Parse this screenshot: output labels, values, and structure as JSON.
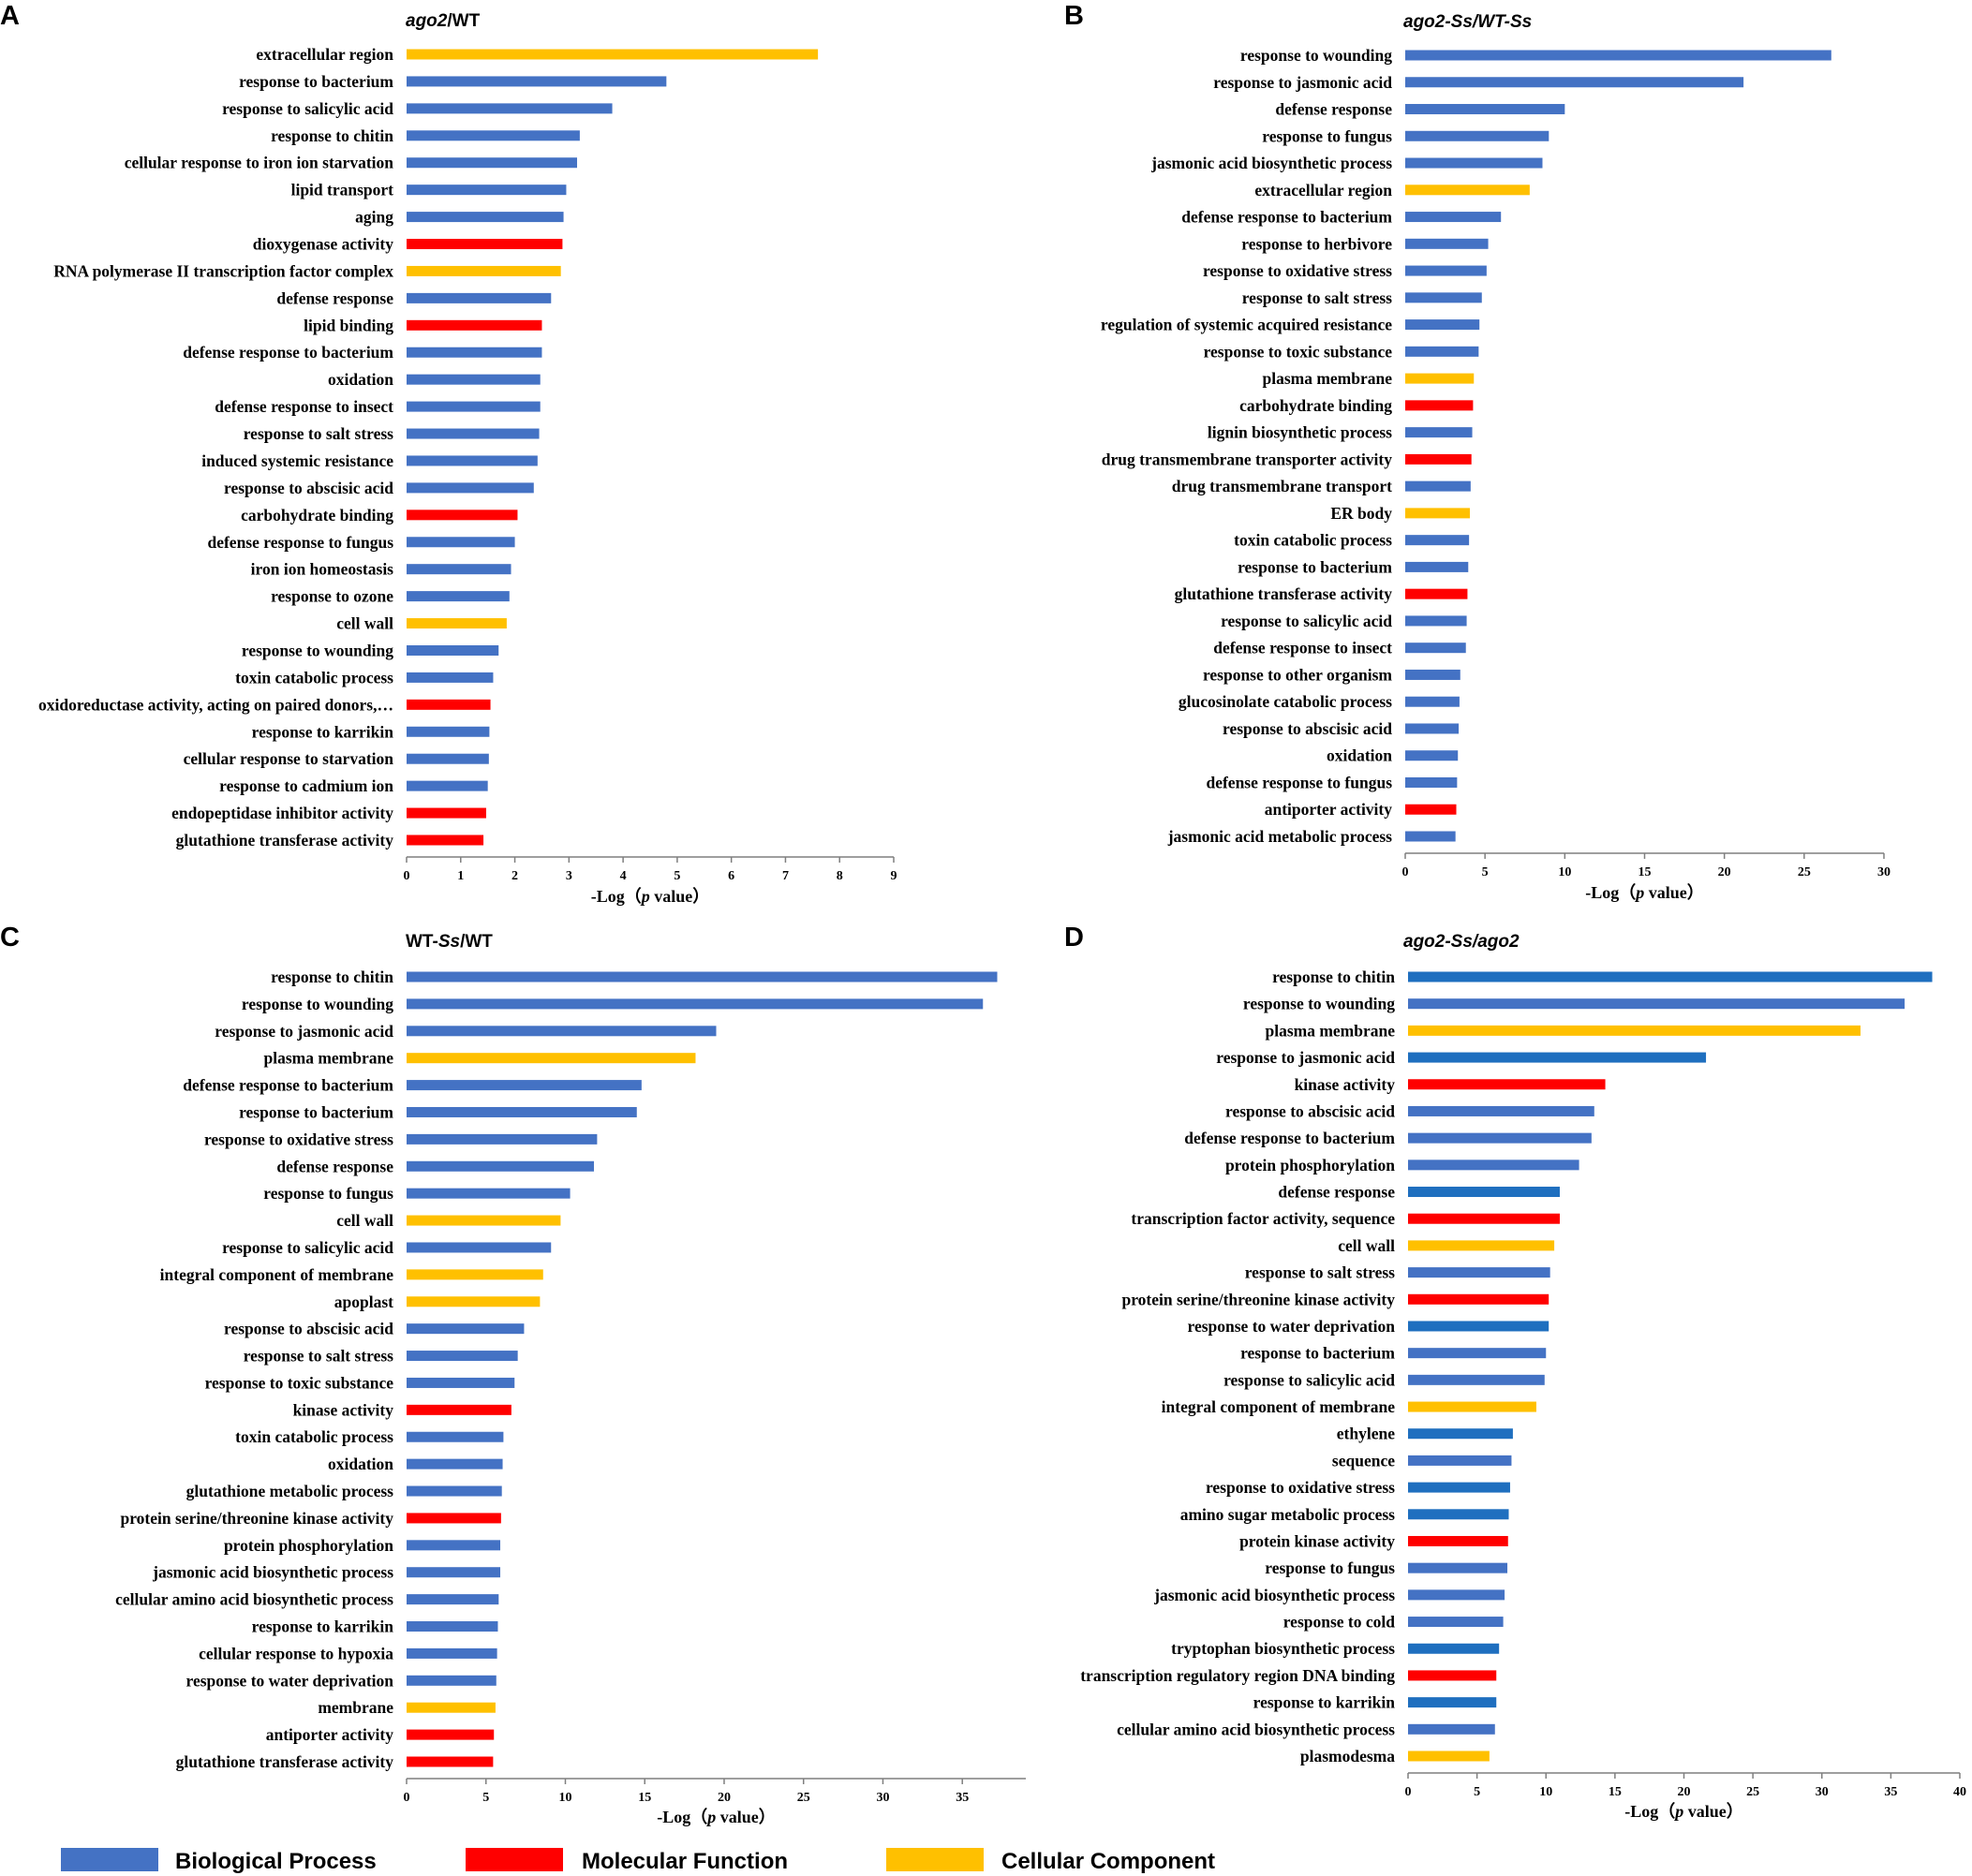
{
  "colors": {
    "bp": "#4472C4",
    "bp_dark": "#1F6FBF",
    "mf": "#FF0000",
    "cc": "#FFC000"
  },
  "legend": {
    "items": [
      {
        "key": "bp",
        "label": "Biological Process"
      },
      {
        "key": "mf",
        "label": "Molecular Function"
      },
      {
        "key": "cc",
        "label": "Cellular Component"
      }
    ]
  },
  "chart_data": [
    {
      "type": "bar",
      "orientation": "horizontal",
      "panel": "A",
      "title": "ago2/WT",
      "title_parts": [
        {
          "text": "ago2",
          "italic": true
        },
        {
          "text": "/WT",
          "italic": false
        }
      ],
      "xlabel": "-Log（p value）",
      "xlabel_parts": [
        {
          "text": "-Log（",
          "italic": false
        },
        {
          "text": "p",
          "italic": true
        },
        {
          "text": " value）",
          "italic": false
        }
      ],
      "xlim": [
        0,
        9
      ],
      "xticks": [
        0,
        1,
        2,
        3,
        4,
        5,
        6,
        7,
        8,
        9
      ],
      "categories": [
        "extracellular region",
        "response to bacterium",
        "response to salicylic acid",
        "response to chitin",
        "cellular response to iron ion starvation",
        "lipid transport",
        "aging",
        "dioxygenase activity",
        "RNA polymerase II transcription factor complex",
        "defense response",
        "lipid binding",
        "defense response to bacterium",
        "oxidation",
        "defense response to insect",
        "response to salt stress",
        "induced systemic resistance",
        "response to abscisic acid",
        "carbohydrate binding",
        "defense response to fungus",
        "iron ion homeostasis",
        "response to ozone",
        "cell wall",
        "response to wounding",
        "toxin catabolic process",
        "oxidoreductase activity, acting on paired donors,…",
        "response to karrikin",
        "cellular response to starvation",
        "response to cadmium ion",
        "endopeptidase inhibitor activity",
        "glutathione transferase activity"
      ],
      "values": [
        7.6,
        4.8,
        3.8,
        3.2,
        3.15,
        2.95,
        2.9,
        2.88,
        2.85,
        2.67,
        2.5,
        2.5,
        2.47,
        2.47,
        2.45,
        2.42,
        2.35,
        2.05,
        2.0,
        1.93,
        1.9,
        1.85,
        1.7,
        1.6,
        1.55,
        1.53,
        1.52,
        1.5,
        1.47,
        1.42
      ],
      "groups": [
        "cc",
        "bp",
        "bp",
        "bp",
        "bp",
        "bp",
        "bp",
        "mf",
        "cc",
        "bp",
        "mf",
        "bp",
        "bp",
        "bp",
        "bp",
        "bp",
        "bp",
        "mf",
        "bp",
        "bp",
        "bp",
        "cc",
        "bp",
        "bp",
        "mf",
        "bp",
        "bp",
        "bp",
        "mf",
        "mf"
      ]
    },
    {
      "type": "bar",
      "orientation": "horizontal",
      "panel": "B",
      "title": "ago2-Ss/WT-Ss",
      "title_parts": [
        {
          "text": "ago2-Ss/WT-Ss",
          "italic": true
        }
      ],
      "xlabel": "-Log（p value）",
      "xlabel_parts": [
        {
          "text": "-Log（",
          "italic": false
        },
        {
          "text": "p",
          "italic": true
        },
        {
          "text": " value）",
          "italic": false
        }
      ],
      "xlim": [
        0,
        30
      ],
      "xticks": [
        0,
        5,
        10,
        15,
        20,
        25,
        30
      ],
      "categories": [
        "response to wounding",
        "response to jasmonic acid",
        "defense response",
        "response to fungus",
        "jasmonic acid biosynthetic process",
        "extracellular region",
        "defense response to bacterium",
        "response to herbivore",
        "response to oxidative stress",
        "response to salt stress",
        "regulation of systemic acquired resistance",
        "response to toxic substance",
        "plasma membrane",
        "carbohydrate binding",
        "lignin biosynthetic process",
        "drug transmembrane transporter activity",
        "drug transmembrane transport",
        "ER body",
        "toxin catabolic process",
        "response to bacterium",
        "glutathione transferase activity",
        "response to salicylic acid",
        "defense response to insect",
        "response to other organism",
        "glucosinolate catabolic process",
        "response to abscisic acid",
        "oxidation",
        "defense response to fungus",
        "antiporter activity",
        "jasmonic acid metabolic process"
      ],
      "values": [
        26.7,
        21.2,
        10.0,
        9.0,
        8.6,
        7.8,
        6.0,
        5.2,
        5.1,
        4.8,
        4.65,
        4.6,
        4.3,
        4.25,
        4.2,
        4.15,
        4.1,
        4.05,
        4.0,
        3.95,
        3.9,
        3.85,
        3.8,
        3.45,
        3.4,
        3.35,
        3.3,
        3.25,
        3.2,
        3.15
      ],
      "groups": [
        "bp",
        "bp",
        "bp",
        "bp",
        "bp",
        "cc",
        "bp",
        "bp",
        "bp",
        "bp",
        "bp",
        "bp",
        "cc",
        "mf",
        "bp",
        "mf",
        "bp",
        "cc",
        "bp",
        "bp",
        "mf",
        "bp",
        "bp",
        "bp",
        "bp",
        "bp",
        "bp",
        "bp",
        "mf",
        "bp"
      ]
    },
    {
      "type": "bar",
      "orientation": "horizontal",
      "panel": "C",
      "title": "WT-Ss/WT",
      "title_parts": [
        {
          "text": "WT-",
          "italic": false
        },
        {
          "text": "Ss",
          "italic": true
        },
        {
          "text": "/WT",
          "italic": false
        }
      ],
      "xlabel": "-Log（p value）",
      "xlabel_parts": [
        {
          "text": "-Log（",
          "italic": false
        },
        {
          "text": "p",
          "italic": true
        },
        {
          "text": " value）",
          "italic": false
        }
      ],
      "xlim": [
        0,
        39
      ],
      "xticks": [
        0,
        5,
        10,
        15,
        20,
        25,
        30,
        35
      ],
      "categories": [
        "response to chitin",
        "response to wounding",
        "response to jasmonic acid",
        "plasma membrane",
        "defense response to bacterium",
        "response to bacterium",
        "response to oxidative stress",
        "defense response",
        "response to fungus",
        "cell wall",
        "response to salicylic acid",
        "integral component of membrane",
        "apoplast",
        "response to abscisic acid",
        "response to salt stress",
        "response to toxic substance",
        "kinase activity",
        "toxin catabolic process",
        "oxidation",
        "glutathione metabolic process",
        "protein serine/threonine kinase activity",
        "protein phosphorylation",
        "jasmonic acid biosynthetic process",
        "cellular amino acid biosynthetic process",
        "response to karrikin",
        "cellular response to hypoxia",
        "response to water deprivation",
        "membrane",
        "antiporter activity",
        "glutathione transferase activity"
      ],
      "values": [
        37.2,
        36.3,
        19.5,
        18.2,
        14.8,
        14.5,
        12.0,
        11.8,
        10.3,
        9.7,
        9.1,
        8.6,
        8.4,
        7.4,
        7.0,
        6.8,
        6.6,
        6.1,
        6.05,
        6.0,
        5.95,
        5.9,
        5.9,
        5.8,
        5.75,
        5.7,
        5.65,
        5.6,
        5.5,
        5.45
      ],
      "groups": [
        "bp",
        "bp",
        "bp",
        "cc",
        "bp",
        "bp",
        "bp",
        "bp",
        "bp",
        "cc",
        "bp",
        "cc",
        "cc",
        "bp",
        "bp",
        "bp",
        "mf",
        "bp",
        "bp",
        "bp",
        "mf",
        "bp",
        "bp",
        "bp",
        "bp",
        "bp",
        "bp",
        "cc",
        "mf",
        "mf"
      ]
    },
    {
      "type": "bar",
      "orientation": "horizontal",
      "panel": "D",
      "title": "ago2-Ss/ago2",
      "title_parts": [
        {
          "text": "ago2-Ss/ago2",
          "italic": true
        }
      ],
      "xlabel": "-Log（p value）",
      "xlabel_parts": [
        {
          "text": "-Log（",
          "italic": false
        },
        {
          "text": "p",
          "italic": true
        },
        {
          "text": " value）",
          "italic": false
        }
      ],
      "xlim": [
        0,
        40
      ],
      "xticks": [
        0,
        5,
        10,
        15,
        20,
        25,
        30,
        35,
        40
      ],
      "categories": [
        "response to chitin",
        "response to wounding",
        "plasma membrane",
        "response to jasmonic acid",
        "kinase activity",
        "response to abscisic acid",
        "defense response to bacterium",
        "protein phosphorylation",
        "defense response",
        "transcription factor activity, sequence",
        "cell wall",
        "response to salt stress",
        "protein serine/threonine kinase activity",
        "response to water deprivation",
        "response to bacterium",
        "response to salicylic acid",
        "integral component of membrane",
        "ethylene",
        "sequence",
        "response to oxidative stress",
        "amino sugar metabolic process",
        "protein kinase activity",
        "response to fungus",
        "jasmonic acid biosynthetic process",
        "response to cold",
        "tryptophan biosynthetic process",
        "transcription regulatory region DNA binding",
        "response to karrikin",
        "cellular amino acid biosynthetic process",
        "plasmodesma"
      ],
      "values": [
        38.0,
        36.0,
        32.8,
        21.6,
        14.3,
        13.5,
        13.3,
        12.4,
        11.0,
        11.0,
        10.6,
        10.3,
        10.2,
        10.2,
        10.0,
        9.9,
        9.3,
        7.6,
        7.5,
        7.4,
        7.3,
        7.25,
        7.2,
        7.0,
        6.9,
        6.6,
        6.4,
        6.4,
        6.3,
        5.9
      ],
      "groups": [
        "bp_dark",
        "bp",
        "cc",
        "bp_dark",
        "mf",
        "bp",
        "bp",
        "bp",
        "bp_dark",
        "mf",
        "cc",
        "bp",
        "mf",
        "bp_dark",
        "bp",
        "bp",
        "cc",
        "bp_dark",
        "bp",
        "bp_dark",
        "bp_dark",
        "mf",
        "bp",
        "bp",
        "bp",
        "bp_dark",
        "mf",
        "bp_dark",
        "bp",
        "cc"
      ]
    }
  ]
}
